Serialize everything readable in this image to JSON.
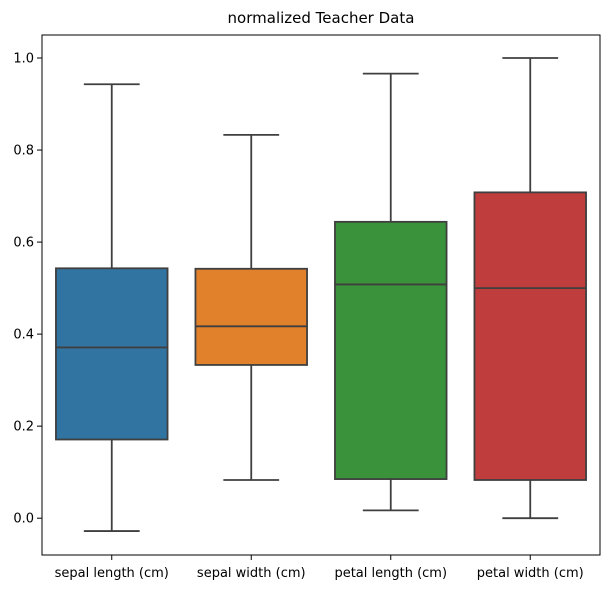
{
  "chart_data": {
    "type": "box",
    "title": "normalized Teacher Data",
    "xlabel": "",
    "ylabel": "",
    "ylim": [
      -0.08,
      1.05
    ],
    "yticks": [
      0.0,
      0.2,
      0.4,
      0.6,
      0.8,
      1.0
    ],
    "ytick_labels": [
      "0.0",
      "0.2",
      "0.4",
      "0.6",
      "0.8",
      "1.0"
    ],
    "grid": false,
    "categories": [
      "sepal length (cm)",
      "sepal width (cm)",
      "petal length (cm)",
      "petal width (cm)"
    ],
    "series": [
      {
        "category": "sepal length (cm)",
        "color": "#3274a1",
        "whisker_low": -0.028,
        "q1": 0.171,
        "median": 0.371,
        "q3": 0.543,
        "whisker_high": 0.943
      },
      {
        "category": "sepal width (cm)",
        "color": "#e1812c",
        "whisker_low": 0.083,
        "q1": 0.333,
        "median": 0.417,
        "q3": 0.542,
        "whisker_high": 0.833
      },
      {
        "category": "petal length (cm)",
        "color": "#3a923a",
        "whisker_low": 0.017,
        "q1": 0.085,
        "median": 0.508,
        "q3": 0.644,
        "whisker_high": 0.966
      },
      {
        "category": "petal width (cm)",
        "color": "#c03d3e",
        "whisker_low": 0.0,
        "q1": 0.083,
        "median": 0.5,
        "q3": 0.708,
        "whisker_high": 1.0
      }
    ]
  }
}
